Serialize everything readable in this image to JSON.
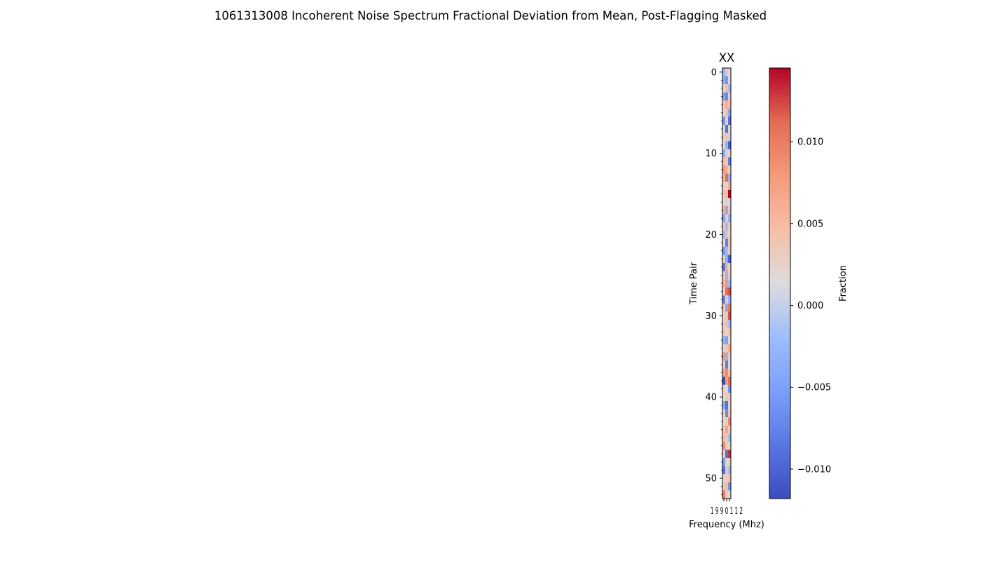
{
  "chart_data": {
    "type": "heatmap",
    "title": "1061313008 Incoherent Noise Spectrum Fractional Deviation from Mean, Post-Flagging Masked",
    "subplot_title": "XX",
    "xlabel": "Frequency (Mhz)",
    "ylabel": "Time Pair",
    "x_tick_label_text": "1 9 9 0 1 1 2",
    "y_ticks": [
      0,
      10,
      20,
      30,
      40,
      50
    ],
    "ylim": [
      0,
      52
    ],
    "n_rows": 53,
    "n_cols": 3,
    "colorbar": {
      "label": "Fraction",
      "ticks": [
        -0.01,
        -0.005,
        0.0,
        0.005,
        0.01
      ],
      "tick_labels": [
        "−0.010",
        "−0.005",
        "0.000",
        "0.005",
        "0.010"
      ],
      "range": [
        -0.0118,
        0.0145
      ],
      "colormap": "coolwarm"
    },
    "values": [
      [
        -0.003,
        0.004,
        0.001
      ],
      [
        -0.004,
        -0.006,
        0.002
      ],
      [
        0.003,
        0.005,
        -0.002
      ],
      [
        -0.005,
        -0.007,
        0.003
      ],
      [
        0.004,
        0.006,
        0.005
      ],
      [
        0.002,
        0.005,
        -0.004
      ],
      [
        -0.006,
        0.003,
        -0.009
      ],
      [
        0.001,
        -0.009,
        0.002
      ],
      [
        0.003,
        0.004,
        0.0
      ],
      [
        0.002,
        -0.003,
        -0.01
      ],
      [
        -0.004,
        0.003,
        0.002
      ],
      [
        0.005,
        0.004,
        -0.008
      ],
      [
        0.008,
        0.006,
        0.003
      ],
      [
        0.006,
        0.011,
        -0.003
      ],
      [
        0.003,
        0.002,
        0.006
      ],
      [
        0.004,
        0.005,
        0.0145
      ],
      [
        0.002,
        0.003,
        0.001
      ],
      [
        0.006,
        -0.004,
        0.004
      ],
      [
        -0.005,
        0.003,
        -0.003
      ],
      [
        0.004,
        -0.002,
        0.003
      ],
      [
        -0.003,
        0.005,
        0.002
      ],
      [
        0.002,
        -0.008,
        0.004
      ],
      [
        -0.006,
        -0.002,
        0.003
      ],
      [
        0.003,
        -0.004,
        -0.01
      ],
      [
        -0.009,
        0.006,
        0.002
      ],
      [
        0.004,
        -0.003,
        0.003
      ],
      [
        0.006,
        0.008,
        -0.002
      ],
      [
        0.003,
        0.011,
        0.012
      ],
      [
        -0.008,
        0.003,
        -0.003
      ],
      [
        0.004,
        -0.004,
        0.01
      ],
      [
        0.002,
        0.004,
        0.012
      ],
      [
        0.003,
        0.005,
        -0.002
      ],
      [
        0.004,
        0.002,
        0.004
      ],
      [
        -0.003,
        -0.005,
        0.002
      ],
      [
        0.002,
        0.004,
        0.006
      ],
      [
        0.008,
        -0.003,
        0.003
      ],
      [
        0.003,
        -0.008,
        0.002
      ],
      [
        0.007,
        0.009,
        0.004
      ],
      [
        -0.0118,
        0.008,
        0.011
      ],
      [
        0.003,
        0.002,
        -0.006
      ],
      [
        0.002,
        0.004,
        0.003
      ],
      [
        -0.004,
        -0.009,
        0.002
      ],
      [
        0.003,
        -0.007,
        0.004
      ],
      [
        0.002,
        0.003,
        0.009
      ],
      [
        0.004,
        0.007,
        0.003
      ],
      [
        0.005,
        0.004,
        -0.002
      ],
      [
        0.009,
        0.003,
        0.002
      ],
      [
        0.003,
        -0.009,
        0.013
      ],
      [
        -0.006,
        0.002,
        0.003
      ],
      [
        -0.009,
        0.004,
        -0.002
      ],
      [
        0.002,
        0.003,
        0.004
      ],
      [
        0.004,
        0.005,
        -0.006
      ],
      [
        0.01,
        0.003,
        0.002
      ]
    ]
  }
}
